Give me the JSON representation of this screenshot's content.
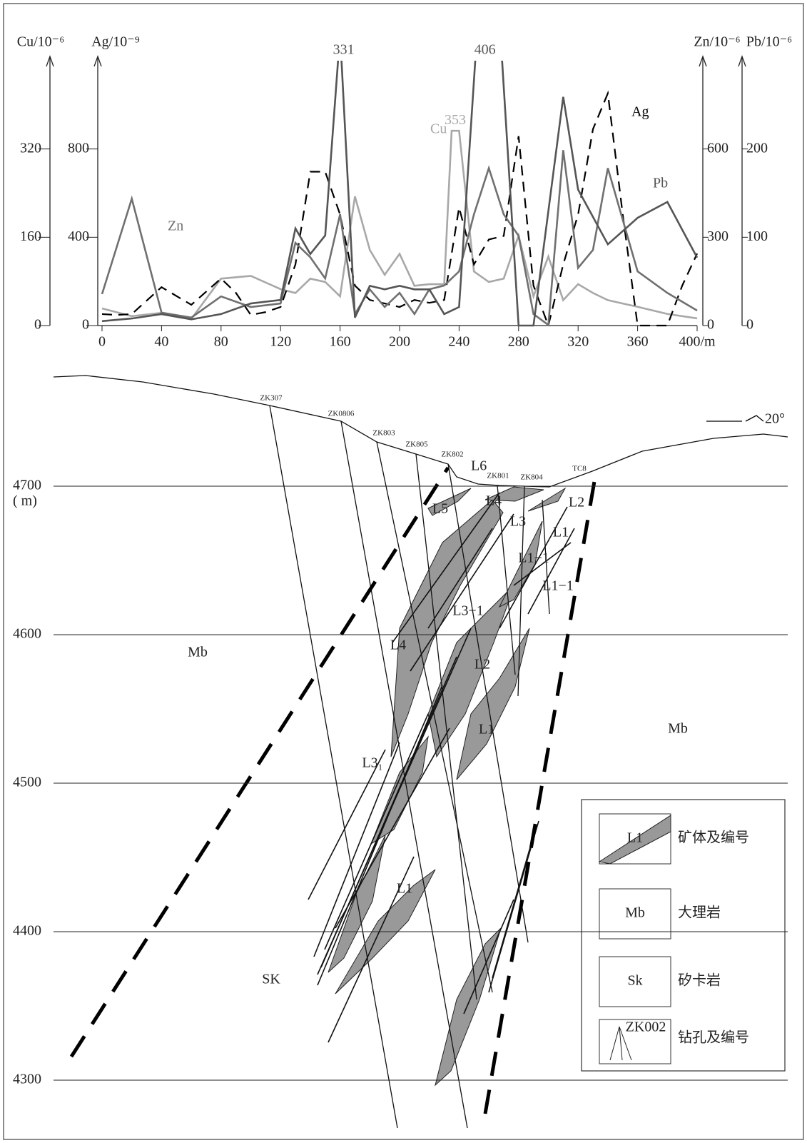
{
  "chart_data": {
    "type": "line",
    "xlim": [
      0,
      400
    ],
    "xticks": [
      0,
      40,
      80,
      120,
      160,
      200,
      240,
      280,
      320,
      360,
      {
        "value": 400,
        "label": "400/m"
      }
    ],
    "y_axes": [
      {
        "label": "Cu/10⁻⁶",
        "lim": [
          0,
          480
        ],
        "ticks": [
          0,
          160,
          320
        ]
      },
      {
        "label": "Ag/10⁻⁹",
        "lim": [
          0,
          1200
        ],
        "ticks": [
          0,
          400,
          800
        ]
      },
      {
        "label": "Zn/10⁻⁶",
        "lim": [
          0,
          900
        ],
        "ticks": [
          0,
          300,
          600
        ]
      },
      {
        "label": "Pb/10⁻⁶",
        "lim": [
          0,
          300
        ],
        "ticks": [
          0,
          100,
          200
        ]
      }
    ],
    "series": [
      {
        "name": "Cu",
        "color": "#a8a8a8",
        "axis": 0,
        "dash": false,
        "x": [
          0,
          20,
          40,
          60,
          80,
          100,
          120,
          130,
          140,
          150,
          160,
          170,
          180,
          190,
          200,
          210,
          220,
          230,
          235,
          240,
          250,
          260,
          270,
          280,
          290,
          300,
          310,
          320,
          330,
          340,
          350,
          360,
          380,
          400
        ],
        "values": [
          31,
          17,
          23,
          12,
          85,
          90,
          66,
          59,
          85,
          79,
          53,
          234,
          137,
          92,
          130,
          72,
          75,
          75,
          353,
          353,
          98,
          79,
          85,
          163,
          53,
          125,
          46,
          75,
          59,
          46,
          40,
          34,
          21,
          13
        ],
        "value_labels": [
          null,
          null,
          null,
          null,
          null,
          null,
          null,
          null,
          null,
          null,
          null,
          null,
          null,
          null,
          null,
          null,
          null,
          null,
          "353",
          null,
          null,
          null,
          null,
          null,
          null,
          null,
          null,
          null,
          null,
          null,
          null,
          null,
          null,
          null
        ]
      },
      {
        "name": "Ag",
        "color": "#000000",
        "axis": 1,
        "dash": true,
        "x": [
          0,
          10,
          20,
          40,
          60,
          80,
          90,
          100,
          110,
          120,
          130,
          140,
          150,
          160,
          170,
          180,
          190,
          200,
          210,
          220,
          230,
          240,
          250,
          260,
          270,
          280,
          290,
          300,
          310,
          320,
          330,
          340,
          350,
          360,
          370,
          380,
          390,
          400
        ],
        "values": [
          52,
          48,
          52,
          174,
          94,
          213,
          148,
          48,
          61,
          84,
          277,
          697,
          697,
          503,
          181,
          116,
          100,
          84,
          116,
          103,
          116,
          535,
          277,
          390,
          406,
          858,
          181,
          0,
          277,
          503,
          890,
          1052,
          503,
          0,
          0,
          0,
          181,
          326
        ]
      },
      {
        "name": "Zn",
        "color": "#707070",
        "axis": 2,
        "dash": false,
        "x": [
          0,
          20,
          40,
          60,
          80,
          100,
          120,
          130,
          140,
          150,
          160,
          170,
          180,
          190,
          200,
          210,
          220,
          230,
          240,
          250,
          260,
          270,
          280,
          290,
          300,
          310,
          320,
          330,
          340,
          360,
          380,
          400
        ],
        "values": [
          107,
          431,
          44,
          27,
          99,
          63,
          75,
          281,
          232,
          160,
          378,
          39,
          123,
          63,
          111,
          39,
          123,
          136,
          184,
          378,
          535,
          378,
          305,
          39,
          2,
          596,
          196,
          257,
          535,
          184,
          111,
          51
        ]
      },
      {
        "name": "Pb",
        "color": "#555555",
        "axis": 3,
        "dash": false,
        "x": [
          0,
          20,
          40,
          60,
          80,
          100,
          120,
          130,
          140,
          150,
          160,
          170,
          180,
          190,
          200,
          210,
          220,
          230,
          240,
          255,
          265,
          280,
          290,
          310,
          320,
          340,
          360,
          380,
          400
        ],
        "values": [
          5,
          8,
          13,
          7,
          13,
          25,
          29,
          110,
          81,
          102,
          331,
          9,
          45,
          41,
          45,
          41,
          41,
          13,
          21,
          406,
          406,
          0,
          0,
          259,
          154,
          92,
          122,
          140,
          77
        ],
        "value_labels": [
          null,
          null,
          null,
          null,
          null,
          null,
          null,
          null,
          null,
          null,
          "331",
          null,
          null,
          null,
          null,
          null,
          null,
          null,
          null,
          "406",
          null,
          null,
          null,
          null,
          null,
          null,
          null,
          null,
          null
        ]
      }
    ]
  },
  "section": {
    "elevation_ticks": [
      4700,
      4600,
      4500,
      4400,
      4300
    ],
    "elevation_unit": "( m)",
    "drill_holes": [
      "ZK307",
      "ZK0806",
      "ZK803",
      "ZK805",
      "ZK802",
      "ZK801",
      "ZK804",
      "TC8"
    ],
    "ore_labels": [
      "L6",
      "L5",
      "L4",
      "L3",
      "L2",
      "L1",
      "L1−1",
      "L1−1",
      "L3−1",
      "L4",
      "L2",
      "L1",
      "L3₁",
      "L1"
    ],
    "rock_labels": [
      "Mb",
      "Mb",
      "SK"
    ],
    "dip": "20°",
    "legend": [
      {
        "symbol": "L1",
        "text": "矿体及编号"
      },
      {
        "symbol": "Mb",
        "text": "大理岩"
      },
      {
        "symbol": "Sk",
        "text": "矽卡岩"
      },
      {
        "symbol": "ZK002",
        "text": "钻孔及编号"
      }
    ]
  }
}
